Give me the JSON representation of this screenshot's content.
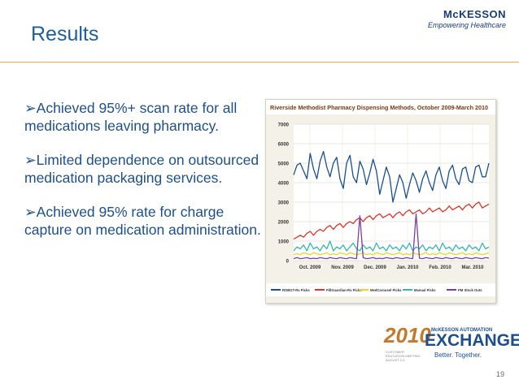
{
  "slide": {
    "title": "Results",
    "brand_logo": "McKESSON",
    "brand_tagline": "Empowering Healthcare",
    "page_number": "19",
    "bullets": [
      "Achieved 95%+ scan rate for all medications leaving pharmacy.",
      "Limited dependence on outsourced medication packaging services.",
      "Achieved 95% rate for charge capture on medication administration."
    ],
    "event": {
      "year": "2010",
      "small_label": "McKESSON AUTOMATION",
      "name": "EXCHANGE",
      "tagline": "Better. Together.",
      "caption": "CUSTOMER EDUCATION MEETING AUGUST 2-5"
    },
    "colors": {
      "title": "#1f5f96",
      "text": "#1f4f8a",
      "rule": "#f2a661"
    }
  },
  "chart_data": {
    "type": "line",
    "title": "Riverside Methodist Pharmacy Dispensing Methods, October 2009-March 2010",
    "ylim": [
      0,
      7000
    ],
    "yticks": [
      0,
      1000,
      2000,
      3000,
      4000,
      5000,
      6000,
      7000
    ],
    "xticks": [
      "Oct. 2009",
      "Nov. 2009",
      "Dec. 2009",
      "Jan. 2010",
      "Feb. 2010",
      "Mar. 2010"
    ],
    "grid": true,
    "legend_position": "bottom",
    "series": [
      {
        "name": "ROBOT-Rx Picks",
        "color": "#1a4f8f",
        "values": [
          4400,
          4900,
          5000,
          4600,
          4200,
          5500,
          4700,
          4200,
          5100,
          5600,
          4800,
          4300,
          5000,
          5300,
          4200,
          3700,
          5000,
          5400,
          4300,
          4000,
          5100,
          4700,
          3900,
          4500,
          5200,
          4600,
          3400,
          4100,
          4800,
          4300,
          3000,
          3700,
          4400,
          4000,
          3200,
          3900,
          4500,
          4100,
          3500,
          4200,
          4600,
          4000,
          3600,
          4400,
          4800,
          4100,
          3700,
          4600,
          4900,
          4200,
          3900,
          4700,
          4800,
          4100,
          4000,
          4800,
          4900,
          4300,
          4300,
          5000
        ]
      },
      {
        "name": "PillGuardian-Rx Picks",
        "color": "#d9352a",
        "values": [
          1100,
          1200,
          1300,
          1200,
          1400,
          1500,
          1300,
          1500,
          1600,
          1500,
          1700,
          1800,
          1600,
          1800,
          1900,
          1700,
          1900,
          2000,
          1900,
          2100,
          2200,
          2000,
          2200,
          2300,
          2100,
          2300,
          2400,
          2200,
          2300,
          2400,
          2200,
          2400,
          2500,
          2300,
          2500,
          2600,
          2400,
          2500,
          2600,
          2400,
          2500,
          2700,
          2500,
          2600,
          2700,
          2500,
          2600,
          2800,
          2600,
          2700,
          2800,
          2600,
          2800,
          2900,
          2700,
          2900,
          3000,
          2700,
          2800,
          2900
        ]
      },
      {
        "name": "MedCarousel Picks",
        "color": "#e8d52e",
        "values": [
          300,
          350,
          300,
          400,
          350,
          300,
          400,
          350,
          300,
          350,
          400,
          300,
          350,
          300,
          400,
          350,
          300,
          400,
          350,
          300,
          350,
          400,
          300,
          350,
          300,
          400,
          350,
          300,
          400,
          350,
          300,
          350,
          400,
          300,
          350,
          300,
          400,
          350,
          300,
          350,
          400,
          300,
          350,
          300,
          400,
          350,
          300,
          400,
          350,
          300,
          350,
          400,
          300,
          350,
          300,
          400,
          350,
          300,
          350,
          400
        ]
      },
      {
        "name": "Manual Picks",
        "color": "#33b8b0",
        "values": [
          500,
          700,
          600,
          800,
          500,
          900,
          600,
          700,
          500,
          800,
          600,
          1000,
          500,
          700,
          600,
          800,
          500,
          700,
          900,
          600,
          500,
          800,
          600,
          700,
          500,
          900,
          600,
          700,
          500,
          800,
          600,
          700,
          500,
          800,
          600,
          900,
          500,
          700,
          600,
          800,
          500,
          700,
          600,
          800,
          500,
          900,
          600,
          700,
          500,
          800,
          600,
          700,
          500,
          800,
          600,
          700,
          500,
          900,
          600,
          700
        ]
      },
      {
        "name": "PM Stock Outs",
        "color": "#7b3fa0",
        "values": [
          100,
          150,
          100,
          120,
          150,
          100,
          120,
          100,
          150,
          120,
          100,
          150,
          120,
          100,
          150,
          120,
          100,
          150,
          120,
          100,
          2300,
          150,
          100,
          120,
          150,
          100,
          120,
          100,
          150,
          120,
          100,
          150,
          120,
          100,
          150,
          120,
          100,
          2400,
          120,
          100,
          150,
          120,
          100,
          150,
          120,
          100,
          150,
          120,
          100,
          150,
          120,
          100,
          150,
          120,
          100,
          150,
          120,
          100,
          150,
          120
        ]
      }
    ]
  }
}
